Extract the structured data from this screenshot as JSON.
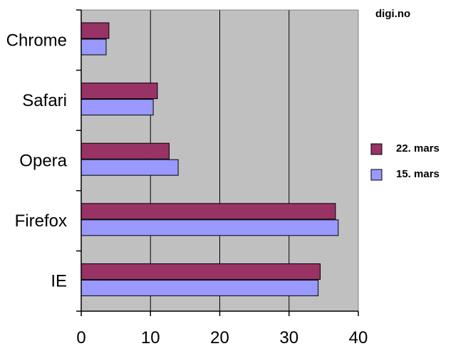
{
  "source": "digi.no",
  "chart_data": {
    "type": "bar",
    "orientation": "horizontal",
    "categories": [
      "Chrome",
      "Safari",
      "Opera",
      "Firefox",
      "IE"
    ],
    "series": [
      {
        "name": "22. mars",
        "values": [
          4,
          11,
          12.7,
          36.7,
          34.5
        ],
        "color": "#993366"
      },
      {
        "name": "15. mars",
        "values": [
          3.6,
          10.4,
          14,
          37.1,
          34.2
        ],
        "color": "#9999ff"
      }
    ],
    "xlim": [
      0,
      40
    ],
    "xticks": [
      0,
      10,
      20,
      30,
      40
    ],
    "grid": true,
    "legend": "right",
    "plot_background": "#c0c0c0"
  }
}
